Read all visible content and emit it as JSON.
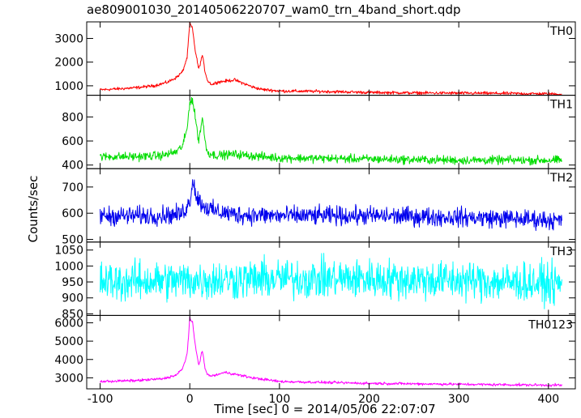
{
  "figure": {
    "title": "ae809001030_20140506220707_wam0_trn_4band_short.qdp",
    "xlabel": "Time [sec] 0 = 2014/05/06 22:07:07",
    "ylabel": "Counts/sec"
  },
  "chart_data": [
    {
      "type": "line",
      "panel": "TH0",
      "color": "#ff0000",
      "xlim": [
        -115,
        430
      ],
      "ylim": [
        600,
        3700
      ],
      "yticks": [
        1000,
        2000,
        3000
      ],
      "xticks": [
        -100,
        0,
        100,
        200,
        300,
        400
      ],
      "series": [
        {
          "name": "TH0",
          "x": [
            -100,
            -80,
            -60,
            -40,
            -25,
            -15,
            -8,
            -3,
            0,
            3,
            6,
            10,
            14,
            17,
            20,
            25,
            30,
            40,
            50,
            60,
            70,
            80,
            100,
            150,
            200,
            250,
            300,
            350,
            400,
            415
          ],
          "values": [
            830,
            870,
            920,
            1000,
            1150,
            1350,
            1600,
            2200,
            3650,
            3400,
            2500,
            1700,
            2300,
            1600,
            1200,
            1050,
            1150,
            1200,
            1250,
            1100,
            950,
            850,
            780,
            760,
            720,
            700,
            690,
            680,
            660,
            650
          ],
          "noise": 40
        }
      ]
    },
    {
      "type": "line",
      "panel": "TH1",
      "color": "#00dd00",
      "xlim": [
        -115,
        430
      ],
      "ylim": [
        370,
        980
      ],
      "yticks": [
        400,
        600,
        800
      ],
      "xticks": [
        -100,
        0,
        100,
        200,
        300,
        400
      ],
      "series": [
        {
          "name": "TH1",
          "x": [
            -100,
            -60,
            -30,
            -15,
            -8,
            -3,
            0,
            3,
            6,
            10,
            14,
            17,
            20,
            30,
            50,
            80,
            100,
            200,
            300,
            400,
            415
          ],
          "values": [
            470,
            470,
            480,
            510,
            560,
            700,
            930,
            940,
            800,
            600,
            800,
            600,
            500,
            480,
            490,
            470,
            460,
            450,
            440,
            440,
            440
          ],
          "noise": 22
        }
      ]
    },
    {
      "type": "line",
      "panel": "TH2",
      "color": "#0000ee",
      "xlim": [
        -115,
        430
      ],
      "ylim": [
        490,
        770
      ],
      "yticks": [
        500,
        600,
        700
      ],
      "xticks": [
        -100,
        0,
        100,
        200,
        300,
        400
      ],
      "series": [
        {
          "name": "TH2",
          "x": [
            -100,
            -50,
            -10,
            0,
            3,
            8,
            15,
            25,
            50,
            100,
            200,
            300,
            400,
            415
          ],
          "values": [
            590,
            590,
            595,
            640,
            730,
            660,
            630,
            610,
            595,
            590,
            590,
            585,
            575,
            570
          ],
          "noise": 22
        }
      ]
    },
    {
      "type": "line",
      "panel": "TH3",
      "color": "#00ffff",
      "xlim": [
        -115,
        430
      ],
      "ylim": [
        845,
        1075
      ],
      "yticks": [
        850,
        900,
        950,
        1000,
        1050
      ],
      "xticks": [
        -100,
        0,
        100,
        200,
        300,
        400
      ],
      "series": [
        {
          "name": "TH3",
          "x": [
            -100,
            0,
            100,
            200,
            300,
            400,
            415
          ],
          "values": [
            950,
            955,
            960,
            960,
            955,
            945,
            940
          ],
          "noise": 38
        }
      ]
    },
    {
      "type": "line",
      "panel": "TH0123",
      "color": "#ff00ff",
      "xlim": [
        -115,
        430
      ],
      "ylim": [
        2400,
        6400
      ],
      "yticks": [
        3000,
        4000,
        5000,
        6000
      ],
      "xticks": [
        -100,
        0,
        100,
        200,
        300,
        400
      ],
      "series": [
        {
          "name": "TH0123",
          "x": [
            -100,
            -60,
            -30,
            -15,
            -8,
            -3,
            0,
            3,
            6,
            10,
            14,
            17,
            20,
            25,
            40,
            50,
            70,
            100,
            200,
            300,
            400,
            415
          ],
          "values": [
            2800,
            2850,
            2950,
            3150,
            3500,
            4300,
            6250,
            6000,
            4800,
            3700,
            4500,
            3500,
            3150,
            3100,
            3300,
            3200,
            3000,
            2800,
            2700,
            2650,
            2600,
            2600
          ],
          "noise": 45
        }
      ]
    }
  ]
}
